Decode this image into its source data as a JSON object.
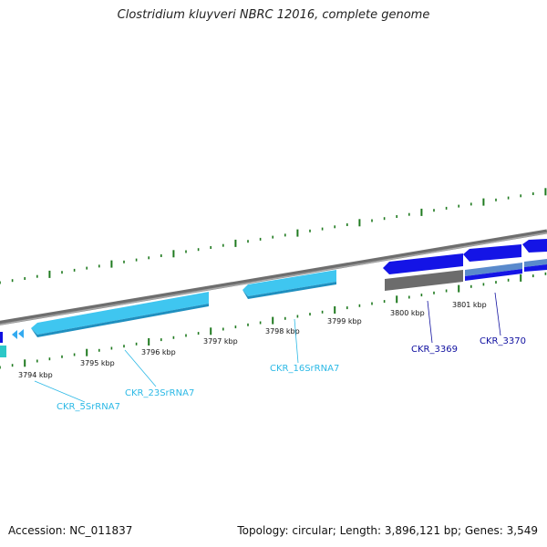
{
  "title": "Clostridium kluyveri NBRC 12016, complete genome",
  "accession": "Accession: NC_011837",
  "summary": "Topology: circular; Length: 3,896,121 bp; Genes: 3,549",
  "colors": {
    "backbone": "#7a7a7a",
    "tick": "#1f7a1f",
    "rrna": "#33c3ec",
    "rrna_dark": "#1a8ab5",
    "cds": "#1010e0",
    "cds_dark": "#000090",
    "pseudo": "#6c6c6c",
    "label_rrna": "#2cb9e6",
    "label_cds": "#1010a0"
  },
  "scale": {
    "labels": [
      "3794 kbp",
      "3795 kbp",
      "3796 kbp",
      "3797 kbp",
      "3798 kbp",
      "3799 kbp",
      "3800 kbp",
      "3801 kbp"
    ]
  },
  "genes": [
    {
      "name": "CKR_5SrRNA7",
      "type": "rRNA"
    },
    {
      "name": "CKR_23SrRNA7",
      "type": "rRNA"
    },
    {
      "name": "CKR_16SrRNA7",
      "type": "rRNA"
    },
    {
      "name": "CKR_3369",
      "type": "CDS"
    },
    {
      "name": "CKR_3370",
      "type": "CDS"
    }
  ]
}
